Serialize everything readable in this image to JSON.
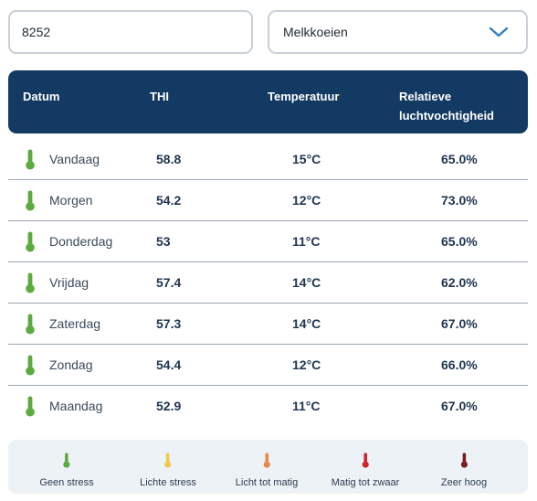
{
  "postcode": {
    "value": "8252",
    "placeholder": ""
  },
  "animal_select": {
    "selected": "Melkkoeien"
  },
  "table": {
    "headers": {
      "date": "Datum",
      "thi": "THI",
      "temperature": "Temperatuur",
      "humidity_line1": "Relatieve",
      "humidity_line2": "luchtvochtigheid"
    },
    "rows": [
      {
        "day": "Vandaag",
        "thi": "58.8",
        "temp": "15°C",
        "rh": "65.0%",
        "icon": "thermometer-icon",
        "color": "#5cab3f"
      },
      {
        "day": "Morgen",
        "thi": "54.2",
        "temp": "12°C",
        "rh": "73.0%",
        "icon": "thermometer-icon",
        "color": "#5cab3f"
      },
      {
        "day": "Donderdag",
        "thi": "53",
        "temp": "11°C",
        "rh": "65.0%",
        "icon": "thermometer-icon",
        "color": "#5cab3f"
      },
      {
        "day": "Vrijdag",
        "thi": "57.4",
        "temp": "14°C",
        "rh": "62.0%",
        "icon": "thermometer-icon",
        "color": "#5cab3f"
      },
      {
        "day": "Zaterdag",
        "thi": "57.3",
        "temp": "14°C",
        "rh": "67.0%",
        "icon": "thermometer-icon",
        "color": "#5cab3f"
      },
      {
        "day": "Zondag",
        "thi": "54.4",
        "temp": "12°C",
        "rh": "66.0%",
        "icon": "thermometer-icon",
        "color": "#5cab3f"
      },
      {
        "day": "Maandag",
        "thi": "52.9",
        "temp": "11°C",
        "rh": "67.0%",
        "icon": "thermometer-icon",
        "color": "#5cab3f"
      }
    ]
  },
  "legend": [
    {
      "label": "Geen stress",
      "color": "#5cab3f"
    },
    {
      "label": "Lichte stress",
      "color": "#f2c94c"
    },
    {
      "label": "Licht tot matig",
      "color": "#e8884a"
    },
    {
      "label": "Matig tot zwaar",
      "color": "#d2232a"
    },
    {
      "label": "Zeer hoog",
      "color": "#7a1e1e"
    }
  ],
  "colors": {
    "header_bg": "#133a63",
    "legend_bg": "#edf2f7",
    "chevron": "#2f7fc1"
  }
}
